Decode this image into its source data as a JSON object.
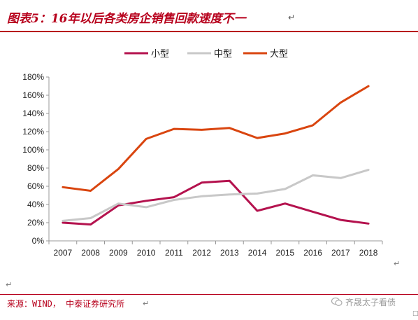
{
  "title": "图表5：16年以后各类房企销售回款速度不一",
  "title_return_mark": "↵",
  "source": "来源：WIND， 中泰证券研究所",
  "source_return_mark": "↵",
  "watermark": "齐晟太子看债",
  "marks": {
    "right": "↵",
    "left": "↵",
    "corner": "□"
  },
  "chart_data": {
    "type": "line",
    "x": [
      "2007",
      "2008",
      "2009",
      "2010",
      "2011",
      "2012",
      "2013",
      "2014",
      "2015",
      "2016",
      "2017",
      "2018"
    ],
    "y_ticks": [
      "0%",
      "20%",
      "40%",
      "60%",
      "80%",
      "100%",
      "120%",
      "140%",
      "160%",
      "180%"
    ],
    "ylim": [
      0,
      180
    ],
    "grid": false,
    "legend_position": "top-center",
    "series": [
      {
        "name": "小型",
        "color": "#b4124e",
        "values": [
          20,
          18,
          39,
          44,
          48,
          64,
          66,
          33,
          41,
          32,
          23,
          19
        ]
      },
      {
        "name": "中型",
        "color": "#c8c8c8",
        "values": [
          22,
          25,
          41,
          37,
          45,
          49,
          51,
          52,
          57,
          72,
          69,
          78
        ]
      },
      {
        "name": "大型",
        "color": "#d9450f",
        "values": [
          59,
          55,
          79,
          112,
          123,
          122,
          124,
          113,
          118,
          127,
          152,
          170
        ]
      }
    ]
  }
}
